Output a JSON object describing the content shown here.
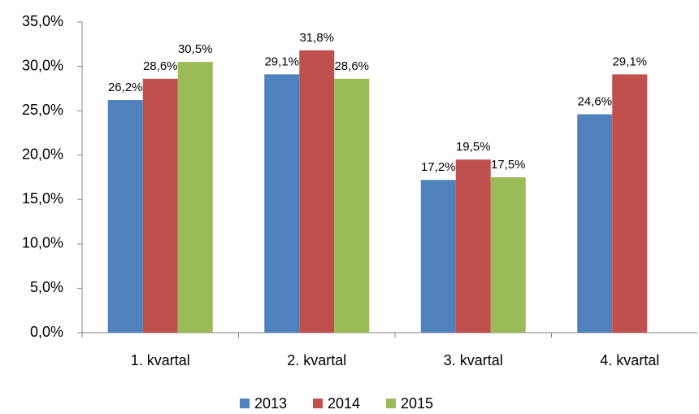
{
  "chart_data": {
    "type": "bar",
    "categories": [
      "1. kvartal",
      "2. kvartal",
      "3. kvartal",
      "4. kvartal"
    ],
    "series": [
      {
        "name": "2013",
        "color": "#4f81bd",
        "values": [
          26.2,
          29.1,
          17.2,
          24.6
        ],
        "value_labels": [
          "26,2%",
          "29,1%",
          "17,2%",
          "24,6%"
        ]
      },
      {
        "name": "2014",
        "color": "#c0504d",
        "values": [
          28.6,
          31.8,
          19.5,
          29.1
        ],
        "value_labels": [
          "28,6%",
          "31,8%",
          "19,5%",
          "29,1%"
        ]
      },
      {
        "name": "2015",
        "color": "#9bbb59",
        "values": [
          30.5,
          28.6,
          17.5,
          null
        ],
        "value_labels": [
          "30,5%",
          "28,6%",
          "17,5%",
          null
        ]
      }
    ],
    "ylim": [
      0,
      35
    ],
    "yticks": [
      {
        "value": 0,
        "label": "0,0%"
      },
      {
        "value": 5,
        "label": "5,0%"
      },
      {
        "value": 10,
        "label": "10,0%"
      },
      {
        "value": 15,
        "label": "15,0%"
      },
      {
        "value": 20,
        "label": "20,0%"
      },
      {
        "value": 25,
        "label": "25,0%"
      },
      {
        "value": 30,
        "label": "30,0%"
      },
      {
        "value": 35,
        "label": "35,0%"
      }
    ],
    "legend": "bottom"
  }
}
